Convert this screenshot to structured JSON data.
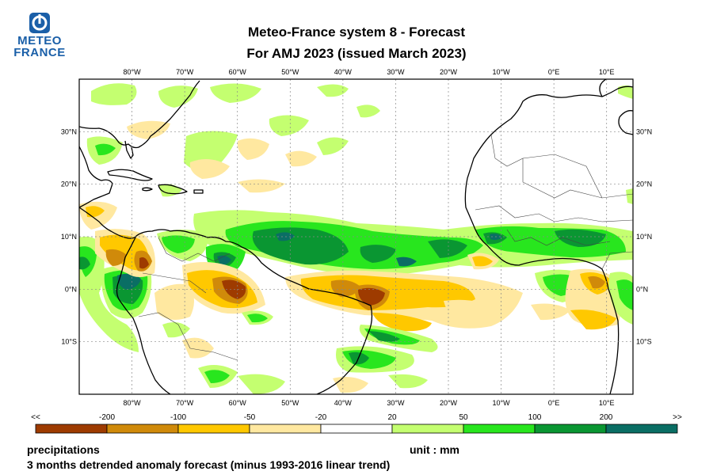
{
  "header": {
    "logo_line1": "METEO",
    "logo_line2": "FRANCE",
    "title_line1": "Meteo-France system 8  -  Forecast",
    "title_line2": "For AMJ 2023      (issued March 2023)"
  },
  "map": {
    "lon_labels": [
      "80°W",
      "70°W",
      "60°W",
      "50°W",
      "40°W",
      "30°W",
      "20°W",
      "10°W",
      "0°E",
      "10°E"
    ],
    "lat_labels": [
      "30°N",
      "20°N",
      "10°N",
      "0°N",
      "10°S"
    ],
    "lon_values": [
      -80,
      -70,
      -60,
      -50,
      -40,
      -30,
      -20,
      -10,
      0,
      10
    ],
    "lat_values": [
      30,
      20,
      10,
      0,
      -10
    ],
    "lon_range": [
      -90,
      15
    ],
    "lat_range": [
      -20,
      40
    ]
  },
  "legend": {
    "tick_labels": [
      "<<",
      "-200",
      "-100",
      "-50",
      "-20",
      "20",
      "50",
      "100",
      "200",
      ">>"
    ],
    "colors": [
      "#9e3b00",
      "#d08a0a",
      "#ffc800",
      "#ffe8a0",
      "#ffffff",
      "#c4ff70",
      "#28e61e",
      "#0a9632",
      "#0a6e64"
    ]
  },
  "footer": {
    "variable": "precipitations",
    "unit": "unit : mm",
    "description": "3 months detrended anomaly forecast (minus 1993-2016 linear trend)"
  }
}
